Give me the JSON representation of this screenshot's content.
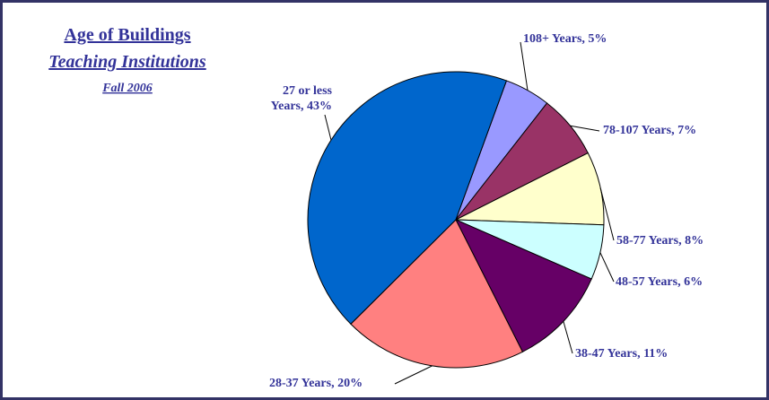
{
  "chart_data": {
    "type": "pie",
    "title": "Age of Buildings",
    "subtitle": "Teaching Institutions",
    "annotation": "Fall 2006",
    "values": [
      5,
      7,
      8,
      6,
      11,
      20,
      43
    ],
    "value_labels": [
      [
        "108+ Years, 5%"
      ],
      [
        "78-107 Years, 7%"
      ],
      [
        "58-77 Years, 8%"
      ],
      [
        "48-57 Years, 6%"
      ],
      [
        "38-47 Years, 11%"
      ],
      [
        "28-37 Years, 20%"
      ],
      [
        "27 or less",
        "Years, 43%"
      ]
    ],
    "colors": [
      "#9999ff",
      "#993366",
      "#ffffcc",
      "#ccffff",
      "#660066",
      "#ff8080",
      "#0066cc"
    ]
  }
}
